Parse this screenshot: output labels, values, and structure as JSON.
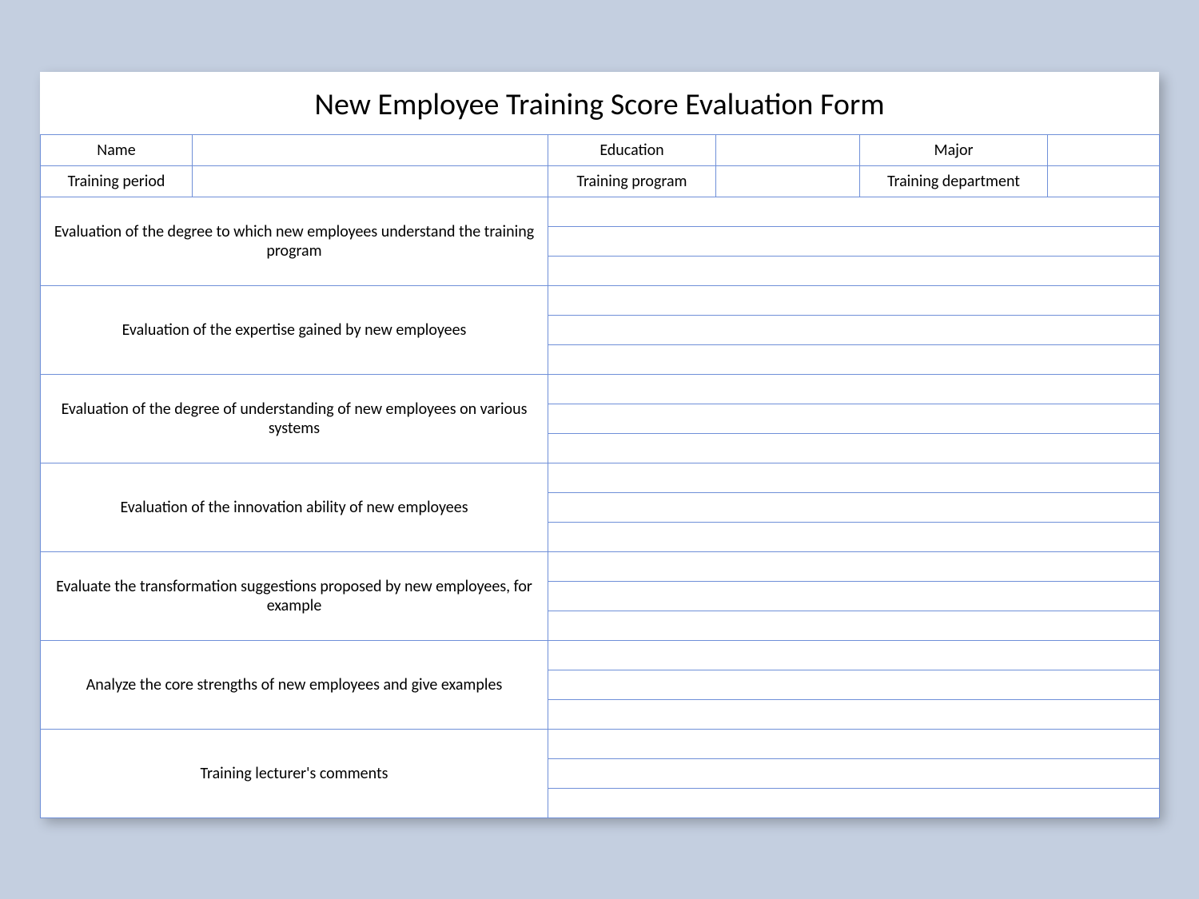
{
  "form": {
    "title": "New Employee Training Score Evaluation Form",
    "header_rows": [
      {
        "label1": "Name",
        "value1": "",
        "label2": "Education",
        "value2": "",
        "label3": "Major",
        "value3": ""
      },
      {
        "label1": "Training period",
        "value1": "",
        "label2": "Training program",
        "value2": "",
        "label3": "Training department",
        "value3": ""
      }
    ],
    "sections": [
      {
        "label": "Evaluation of the degree to which new employees understand the training program",
        "lines": [
          "",
          "",
          ""
        ]
      },
      {
        "label": "Evaluation of the expertise gained by new employees",
        "lines": [
          "",
          "",
          ""
        ]
      },
      {
        "label": "Evaluation of the degree of understanding of new employees on various systems",
        "lines": [
          "",
          "",
          ""
        ]
      },
      {
        "label": "Evaluation of the innovation ability of new employees",
        "lines": [
          "",
          "",
          ""
        ]
      },
      {
        "label": "Evaluate the transformation suggestions proposed by new employees, for example",
        "lines": [
          "",
          "",
          ""
        ]
      },
      {
        "label": "Analyze the core strengths of new employees and give examples",
        "lines": [
          "",
          "",
          ""
        ]
      },
      {
        "label": "Training lecturer's comments",
        "lines": [
          "",
          "",
          ""
        ]
      }
    ],
    "style": {
      "border_color": "#6f8fd8",
      "background_color": "#ffffff",
      "page_background": "#c4cfe0",
      "title_fontsize": 38,
      "cell_fontsize": 20,
      "font_family": "Calibri"
    }
  }
}
